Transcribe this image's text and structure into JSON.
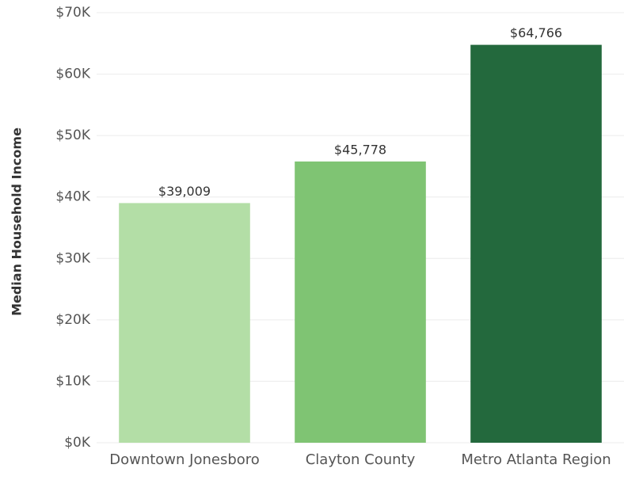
{
  "chart_data": {
    "type": "bar",
    "y_label": "Median Household Income",
    "categories": [
      "Downtown Jonesboro",
      "Clayton County",
      "Metro Atlanta Region"
    ],
    "values": [
      39009,
      45778,
      64766
    ],
    "value_labels": [
      "$39,009",
      "$45,778",
      "$64,766"
    ],
    "colors": [
      "#b3dea6",
      "#7fc473",
      "#23693d"
    ],
    "ylim": [
      0,
      70000
    ],
    "yticks": [
      {
        "value": 0,
        "label": "$0K"
      },
      {
        "value": 10000,
        "label": "$10K"
      },
      {
        "value": 20000,
        "label": "$20K"
      },
      {
        "value": 30000,
        "label": "$30K"
      },
      {
        "value": 40000,
        "label": "$40K"
      },
      {
        "value": 50000,
        "label": "$50K"
      },
      {
        "value": 60000,
        "label": "$60K"
      },
      {
        "value": 70000,
        "label": "$70K"
      }
    ],
    "grid": true
  }
}
